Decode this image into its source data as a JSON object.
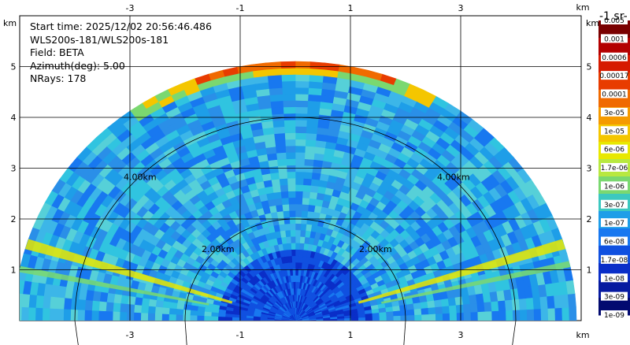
{
  "info": {
    "start_time": "Start time: 2025/12/02 20:56:46.486",
    "instrument": "WLS200s-181/WLS200s-181",
    "field": "Field: BETA",
    "azimuth": "Azimuth(deg): 5.00",
    "nrays": "NRays: 178"
  },
  "chart_data": {
    "type": "heatmap",
    "subtype": "RHI lidar scan (semicircular sector)",
    "field": "BETA",
    "azimuth_deg": 5.0,
    "n_rays": 178,
    "x_unit": "km",
    "y_unit": "km",
    "xlim": [
      -5.1,
      5.1
    ],
    "ylim": [
      0,
      5.5
    ],
    "x_ticks": [
      -3,
      -1,
      1,
      3
    ],
    "y_ticks": [
      1,
      2,
      3,
      4,
      5
    ],
    "max_range_km": 5.1,
    "range_rings": [
      {
        "radius_km": 2.0,
        "label": "2.00km"
      },
      {
        "radius_km": 4.0,
        "label": "4.00km"
      }
    ],
    "grid": true,
    "colorbar": {
      "position": "right",
      "unit_fragment": "-1 sr-",
      "labels": [
        "0.005",
        "0.001",
        "0.0006",
        "0.00017",
        "0.0001",
        "3e-05",
        "1e-05",
        "6e-06",
        "1.7e-06",
        "1e-06",
        "3e-07",
        "1e-07",
        "6e-08",
        "1.7e-08",
        "1e-08",
        "3e-09",
        "1e-09"
      ],
      "colors": [
        "#7a0000",
        "#b40000",
        "#d61a00",
        "#e83c00",
        "#f06a00",
        "#f59a00",
        "#f4c600",
        "#e8e800",
        "#b8e840",
        "#7ad870",
        "#3cc8c0",
        "#1e9ee8",
        "#1878f0",
        "#1050e0",
        "#0a2ec8",
        "#061aa0",
        "#020a70"
      ]
    }
  }
}
